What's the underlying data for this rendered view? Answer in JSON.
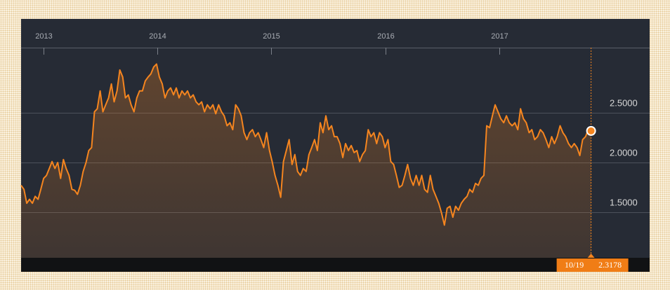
{
  "chart_data": {
    "type": "line",
    "color": "#f5851f",
    "grid": true,
    "xlim": [
      2012.803,
      2018.32
    ],
    "ylim": [
      1.042,
      3.155
    ],
    "xticks": [
      2013,
      2014,
      2015,
      2016,
      2017
    ],
    "yticks": [
      {
        "value": 1.5,
        "label": "1.5000"
      },
      {
        "value": 2.0,
        "label": "2.0000"
      },
      {
        "value": 2.5,
        "label": "2.5000"
      }
    ],
    "crosshair_date": "10/19",
    "x": [
      2012.803,
      2012.828,
      2012.853,
      2012.877,
      2012.902,
      2012.927,
      2012.952,
      2012.976,
      2013.001,
      2013.026,
      2013.051,
      2013.075,
      2013.1,
      2013.125,
      2013.15,
      2013.175,
      2013.199,
      2013.224,
      2013.249,
      2013.274,
      2013.298,
      2013.323,
      2013.348,
      2013.373,
      2013.397,
      2013.422,
      2013.447,
      2013.472,
      2013.497,
      2013.521,
      2013.546,
      2013.571,
      2013.596,
      2013.62,
      2013.645,
      2013.67,
      2013.695,
      2013.719,
      2013.744,
      2013.769,
      2013.794,
      2013.819,
      2013.843,
      2013.868,
      2013.893,
      2013.918,
      2013.942,
      2013.967,
      2013.992,
      2014.017,
      2014.042,
      2014.066,
      2014.091,
      2014.116,
      2014.141,
      2014.165,
      2014.19,
      2014.215,
      2014.24,
      2014.264,
      2014.289,
      2014.314,
      2014.339,
      2014.363,
      2014.388,
      2014.413,
      2014.438,
      2014.463,
      2014.487,
      2014.512,
      2014.537,
      2014.562,
      2014.586,
      2014.611,
      2014.636,
      2014.661,
      2014.686,
      2014.71,
      2014.735,
      2014.76,
      2014.785,
      2014.809,
      2014.834,
      2014.859,
      2014.884,
      2014.908,
      2014.933,
      2014.958,
      2014.983,
      2015.007,
      2015.032,
      2015.057,
      2015.082,
      2015.106,
      2015.131,
      2015.156,
      2015.181,
      2015.206,
      2015.23,
      2015.255,
      2015.28,
      2015.305,
      2015.33,
      2015.354,
      2015.379,
      2015.404,
      2015.429,
      2015.453,
      2015.478,
      2015.503,
      2015.528,
      2015.552,
      2015.577,
      2015.602,
      2015.627,
      2015.651,
      2015.676,
      2015.701,
      2015.726,
      2015.751,
      2015.775,
      2015.8,
      2015.825,
      2015.85,
      2015.874,
      2015.899,
      2015.924,
      2015.949,
      2015.974,
      2015.998,
      2016.023,
      2016.048,
      2016.073,
      2016.097,
      2016.122,
      2016.147,
      2016.172,
      2016.196,
      2016.221,
      2016.246,
      2016.271,
      2016.296,
      2016.32,
      2016.345,
      2016.37,
      2016.395,
      2016.419,
      2016.444,
      2016.469,
      2016.494,
      2016.519,
      2016.543,
      2016.568,
      2016.593,
      2016.617,
      2016.642,
      2016.667,
      2016.692,
      2016.717,
      2016.741,
      2016.766,
      2016.791,
      2016.816,
      2016.84,
      2016.865,
      2016.89,
      2016.915,
      2016.94,
      2016.964,
      2016.989,
      2017.014,
      2017.039,
      2017.063,
      2017.088,
      2017.113,
      2017.138,
      2017.163,
      2017.187,
      2017.212,
      2017.237,
      2017.262,
      2017.286,
      2017.311,
      2017.336,
      2017.361,
      2017.385,
      2017.41,
      2017.435,
      2017.46,
      2017.484,
      2017.509,
      2017.534,
      2017.559,
      2017.583,
      2017.608,
      2017.633,
      2017.658,
      2017.683,
      2017.707,
      2017.732,
      2017.757,
      2017.782,
      2017.806
    ],
    "values": [
      1.77,
      1.73,
      1.59,
      1.63,
      1.59,
      1.66,
      1.63,
      1.73,
      1.84,
      1.87,
      1.94,
      2.01,
      1.94,
      2.0,
      1.84,
      2.03,
      1.94,
      1.87,
      1.73,
      1.72,
      1.68,
      1.77,
      1.91,
      2.0,
      2.12,
      2.15,
      2.51,
      2.54,
      2.72,
      2.51,
      2.58,
      2.65,
      2.79,
      2.61,
      2.72,
      2.93,
      2.86,
      2.65,
      2.68,
      2.58,
      2.51,
      2.65,
      2.72,
      2.72,
      2.82,
      2.86,
      2.89,
      2.96,
      2.99,
      2.86,
      2.79,
      2.65,
      2.72,
      2.75,
      2.68,
      2.75,
      2.65,
      2.72,
      2.68,
      2.72,
      2.65,
      2.68,
      2.61,
      2.58,
      2.61,
      2.51,
      2.58,
      2.54,
      2.58,
      2.49,
      2.58,
      2.51,
      2.47,
      2.37,
      2.4,
      2.33,
      2.58,
      2.54,
      2.47,
      2.3,
      2.23,
      2.3,
      2.33,
      2.26,
      2.3,
      2.23,
      2.15,
      2.3,
      2.12,
      2.01,
      1.87,
      1.77,
      1.65,
      2.01,
      2.12,
      2.23,
      1.98,
      2.08,
      1.91,
      1.87,
      1.94,
      1.91,
      2.08,
      2.15,
      2.23,
      2.12,
      2.4,
      2.3,
      2.47,
      2.33,
      2.37,
      2.26,
      2.26,
      2.19,
      2.05,
      2.19,
      2.12,
      2.17,
      2.1,
      2.12,
      2.01,
      2.08,
      2.12,
      2.33,
      2.26,
      2.3,
      2.19,
      2.3,
      2.26,
      2.15,
      2.23,
      2.01,
      1.98,
      1.87,
      1.75,
      1.77,
      1.87,
      1.98,
      1.84,
      1.77,
      1.87,
      1.77,
      1.87,
      1.73,
      1.7,
      1.87,
      1.73,
      1.66,
      1.59,
      1.49,
      1.37,
      1.54,
      1.56,
      1.45,
      1.56,
      1.52,
      1.59,
      1.63,
      1.66,
      1.73,
      1.7,
      1.79,
      1.77,
      1.84,
      1.87,
      2.37,
      2.35,
      2.47,
      2.58,
      2.51,
      2.44,
      2.4,
      2.47,
      2.4,
      2.37,
      2.4,
      2.33,
      2.54,
      2.44,
      2.4,
      2.3,
      2.33,
      2.23,
      2.26,
      2.33,
      2.3,
      2.23,
      2.15,
      2.26,
      2.19,
      2.26,
      2.37,
      2.3,
      2.26,
      2.19,
      2.15,
      2.19,
      2.15,
      2.07,
      2.23,
      2.26,
      2.33,
      2.3178
    ]
  }
}
